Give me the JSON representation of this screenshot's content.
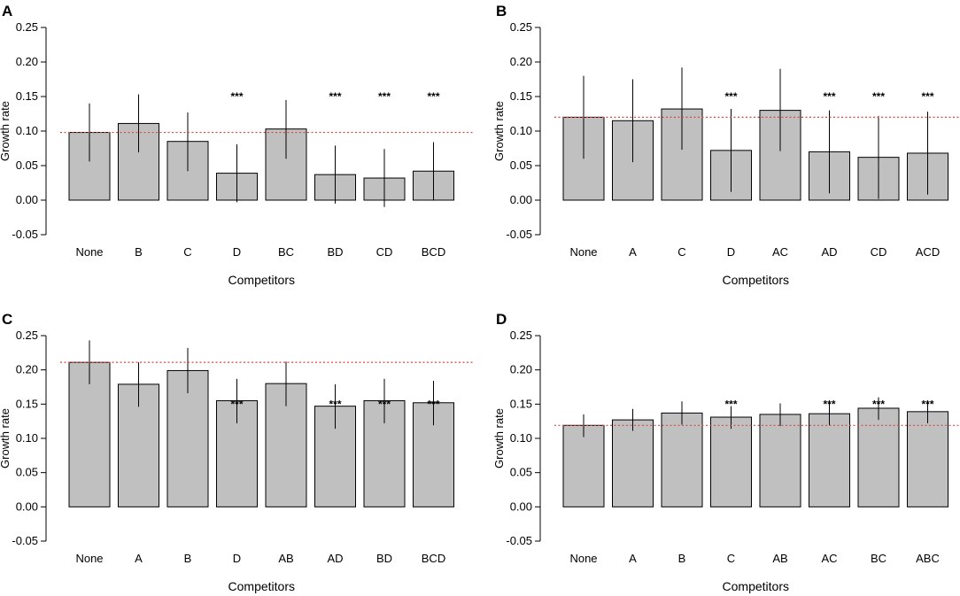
{
  "colors": {
    "bar_fill": "#c0c0c0",
    "bar_stroke": "#000000",
    "reference_line": "#e0443e"
  },
  "chart_data": [
    {
      "type": "bar",
      "panel": "A",
      "categories": [
        "None",
        "B",
        "C",
        "D",
        "BC",
        "BD",
        "CD",
        "BCD"
      ],
      "values": [
        0.098,
        0.111,
        0.085,
        0.039,
        0.103,
        0.037,
        0.032,
        0.042
      ],
      "error_low": [
        0.056,
        0.069,
        0.042,
        -0.003,
        0.06,
        -0.005,
        -0.01,
        0.0
      ],
      "error_high": [
        0.14,
        0.153,
        0.127,
        0.081,
        0.145,
        0.079,
        0.074,
        0.084
      ],
      "significance": [
        "",
        "",
        "",
        "***",
        "",
        "***",
        "***",
        "***"
      ],
      "reference_value": 0.098,
      "ylim": [
        -0.05,
        0.25
      ],
      "yticks": [
        "-0.05",
        "0.00",
        "0.05",
        "0.10",
        "0.15",
        "0.20",
        "0.25"
      ],
      "ylabel": "Growth rate",
      "xlabel": "Competitors"
    },
    {
      "type": "bar",
      "panel": "B",
      "categories": [
        "None",
        "A",
        "C",
        "D",
        "AC",
        "AD",
        "CD",
        "ACD"
      ],
      "values": [
        0.12,
        0.115,
        0.132,
        0.072,
        0.13,
        0.07,
        0.062,
        0.068
      ],
      "error_low": [
        0.06,
        0.055,
        0.073,
        0.012,
        0.071,
        0.01,
        0.002,
        0.008
      ],
      "error_high": [
        0.18,
        0.175,
        0.192,
        0.132,
        0.19,
        0.13,
        0.122,
        0.128
      ],
      "significance": [
        "",
        "",
        "",
        "***",
        "",
        "***",
        "***",
        "***"
      ],
      "reference_value": 0.12,
      "ylim": [
        -0.05,
        0.25
      ],
      "yticks": [
        "-0.05",
        "0.00",
        "0.05",
        "0.10",
        "0.15",
        "0.20",
        "0.25"
      ],
      "ylabel": "Growth rate",
      "xlabel": "Competitors"
    },
    {
      "type": "bar",
      "panel": "C",
      "categories": [
        "None",
        "A",
        "B",
        "D",
        "AB",
        "AD",
        "BD",
        "BCD"
      ],
      "values": [
        0.211,
        0.179,
        0.199,
        0.155,
        0.18,
        0.147,
        0.155,
        0.152
      ],
      "error_low": [
        0.179,
        0.146,
        0.166,
        0.122,
        0.147,
        0.114,
        0.122,
        0.119
      ],
      "error_high": [
        0.243,
        0.211,
        0.232,
        0.187,
        0.212,
        0.179,
        0.187,
        0.184
      ],
      "significance": [
        "",
        "",
        "",
        "***",
        "",
        "***",
        "***",
        "***"
      ],
      "reference_value": 0.211,
      "ylim": [
        -0.05,
        0.25
      ],
      "yticks": [
        "-0.05",
        "0.00",
        "0.05",
        "0.10",
        "0.15",
        "0.20",
        "0.25"
      ],
      "ylabel": "Growth rate",
      "xlabel": "Competitors"
    },
    {
      "type": "bar",
      "panel": "D",
      "categories": [
        "None",
        "A",
        "B",
        "C",
        "AB",
        "AC",
        "BC",
        "ABC"
      ],
      "values": [
        0.119,
        0.127,
        0.137,
        0.131,
        0.135,
        0.136,
        0.144,
        0.139
      ],
      "error_low": [
        0.102,
        0.111,
        0.12,
        0.114,
        0.118,
        0.119,
        0.127,
        0.122
      ],
      "error_high": [
        0.135,
        0.143,
        0.154,
        0.147,
        0.151,
        0.152,
        0.16,
        0.155
      ],
      "significance": [
        "",
        "",
        "",
        "***",
        "",
        "***",
        "***",
        "***"
      ],
      "reference_value": 0.119,
      "ylim": [
        -0.05,
        0.25
      ],
      "yticks": [
        "-0.05",
        "0.00",
        "0.05",
        "0.10",
        "0.15",
        "0.20",
        "0.25"
      ],
      "ylabel": "Growth rate",
      "xlabel": "Competitors"
    }
  ]
}
